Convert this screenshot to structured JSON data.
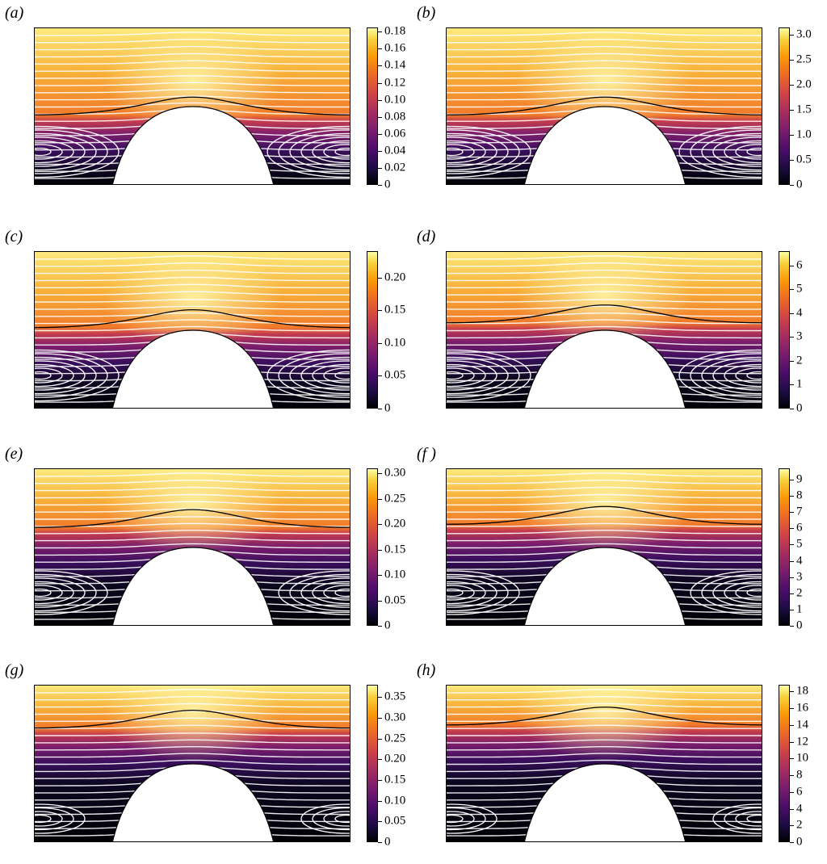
{
  "panels": [
    {
      "label": "(a)",
      "ticks": [
        "0",
        "0.02",
        "0.04",
        "0.06",
        "0.08",
        "0.10",
        "0.12",
        "0.14",
        "0.16",
        "0.18"
      ],
      "vmax": 0.185,
      "interface_frac": 0.55,
      "vortex": "strong"
    },
    {
      "label": "(b)",
      "ticks": [
        "0",
        "0.5",
        "1.0",
        "1.5",
        "2.0",
        "2.5",
        "3.0"
      ],
      "vmax": 3.15,
      "interface_frac": 0.55,
      "vortex": "strong"
    },
    {
      "label": "(c)",
      "ticks": [
        "0",
        "0.05",
        "0.10",
        "0.15",
        "0.20"
      ],
      "vmax": 0.24,
      "interface_frac": 0.48,
      "vortex": "strong"
    },
    {
      "label": "(d)",
      "ticks": [
        "0",
        "1",
        "2",
        "3",
        "4",
        "5",
        "6"
      ],
      "vmax": 6.6,
      "interface_frac": 0.45,
      "vortex": "strong"
    },
    {
      "label": "(e)",
      "ticks": [
        "0",
        "0.05",
        "0.10",
        "0.15",
        "0.20",
        "0.25",
        "0.30"
      ],
      "vmax": 0.31,
      "interface_frac": 0.37,
      "vortex": "medium"
    },
    {
      "label": "(f )",
      "ticks": [
        "0",
        "1",
        "2",
        "3",
        "4",
        "5",
        "6",
        "7",
        "8",
        "9"
      ],
      "vmax": 9.7,
      "interface_frac": 0.35,
      "vortex": "medium"
    },
    {
      "label": "(g)",
      "ticks": [
        "0",
        "0.05",
        "0.10",
        "0.15",
        "0.20",
        "0.25",
        "0.30",
        "0.35"
      ],
      "vmax": 0.38,
      "interface_frac": 0.27,
      "vortex": "weak"
    },
    {
      "label": "(h)",
      "ticks": [
        "0",
        "2",
        "4",
        "6",
        "8",
        "10",
        "12",
        "14",
        "16",
        "18"
      ],
      "vmax": 18.8,
      "interface_frac": 0.25,
      "vortex": "weak"
    }
  ],
  "colors": {
    "background": "#ffffff",
    "streamline": "#ffffff",
    "interface": "#000000",
    "obstacle": "#ffffff"
  }
}
